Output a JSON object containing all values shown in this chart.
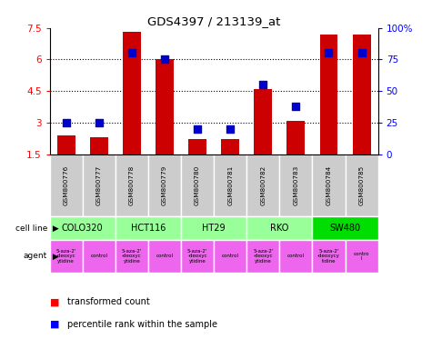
{
  "title": "GDS4397 / 213139_at",
  "samples": [
    "GSM800776",
    "GSM800777",
    "GSM800778",
    "GSM800779",
    "GSM800780",
    "GSM800781",
    "GSM800782",
    "GSM800783",
    "GSM800784",
    "GSM800785"
  ],
  "transformed_count": [
    2.4,
    2.3,
    7.3,
    6.0,
    2.2,
    2.2,
    4.6,
    3.1,
    7.2,
    7.2
  ],
  "percentile_rank": [
    25,
    25,
    80,
    75,
    20,
    20,
    55,
    38,
    80,
    80
  ],
  "ylim_left": [
    1.5,
    7.5
  ],
  "ylim_right": [
    0,
    100
  ],
  "yticks_left": [
    1.5,
    3.0,
    4.5,
    6.0,
    7.5
  ],
  "yticks_right": [
    0,
    25,
    50,
    75,
    100
  ],
  "ytick_labels_left": [
    "1.5",
    "3",
    "4.5",
    "6",
    "7.5"
  ],
  "ytick_labels_right": [
    "0",
    "25",
    "50",
    "75",
    "100%"
  ],
  "cell_lines": [
    {
      "name": "COLO320",
      "start": 0,
      "end": 2,
      "color": "#99ff99"
    },
    {
      "name": "HCT116",
      "start": 2,
      "end": 4,
      "color": "#99ff99"
    },
    {
      "name": "HT29",
      "start": 4,
      "end": 6,
      "color": "#99ff99"
    },
    {
      "name": "RKO",
      "start": 6,
      "end": 8,
      "color": "#99ff99"
    },
    {
      "name": "SW480",
      "start": 8,
      "end": 10,
      "color": "#00dd00"
    }
  ],
  "agents": [
    {
      "name": "5-aza-2'\n-deoxyc\nytidine",
      "start": 0,
      "end": 1,
      "color": "#ee66ee"
    },
    {
      "name": "control",
      "start": 1,
      "end": 2,
      "color": "#ee66ee"
    },
    {
      "name": "5-aza-2'\n-deoxyc\nytidine",
      "start": 2,
      "end": 3,
      "color": "#ee66ee"
    },
    {
      "name": "control",
      "start": 3,
      "end": 4,
      "color": "#ee66ee"
    },
    {
      "name": "5-aza-2'\n-deoxyc\nytidine",
      "start": 4,
      "end": 5,
      "color": "#ee66ee"
    },
    {
      "name": "control",
      "start": 5,
      "end": 6,
      "color": "#ee66ee"
    },
    {
      "name": "5-aza-2'\n-deoxyc\nytidine",
      "start": 6,
      "end": 7,
      "color": "#ee66ee"
    },
    {
      "name": "control",
      "start": 7,
      "end": 8,
      "color": "#ee66ee"
    },
    {
      "name": "5-aza-2'\n-deoxycy\ntidine",
      "start": 8,
      "end": 9,
      "color": "#ee66ee"
    },
    {
      "name": "contro\nl",
      "start": 9,
      "end": 10,
      "color": "#ee66ee"
    }
  ],
  "bar_color": "#cc0000",
  "dot_color": "#0000cc",
  "bar_width": 0.55,
  "dot_size": 30,
  "sample_bg_color": "#cccccc",
  "legend_red": "transformed count",
  "legend_blue": "percentile rank within the sample"
}
